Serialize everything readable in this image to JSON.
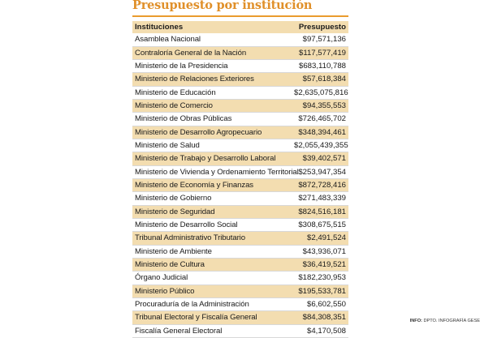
{
  "title": "Presupuesto por institución",
  "table": {
    "headers": [
      "Instituciones",
      "Presupuesto"
    ],
    "rows": [
      [
        "Asamblea Nacional",
        "$97,571,136"
      ],
      [
        "Contraloría General de la Nación",
        "$117,577,419"
      ],
      [
        "Ministerio de la Presidencia",
        "$683,110,788"
      ],
      [
        "Ministerio de Relaciones Exteriores",
        "$57,618,384"
      ],
      [
        "Ministerio de Educación",
        "$2,635,075,816"
      ],
      [
        "Ministerio de Comercio",
        "$94,355,553"
      ],
      [
        " Ministerio de Obras Públicas",
        "$726,465,702"
      ],
      [
        "Ministerio de Desarrollo Agropecuario",
        "$348,394,461"
      ],
      [
        "Ministerio de Salud",
        "$2,055,439,355"
      ],
      [
        "Ministerio de Trabajo y Desarrollo Laboral",
        "$39,402,571"
      ],
      [
        "Ministerio de Vivienda y Ordenamiento Territorial",
        "$253,947,354"
      ],
      [
        "Ministerio de Economía y Finanzas",
        "$872,728,416"
      ],
      [
        "Ministerio de Gobierno",
        "$271,483,339"
      ],
      [
        "Ministerio de Seguridad",
        "$824,516,181"
      ],
      [
        "Ministerio de Desarrollo Social",
        "$308,675,515"
      ],
      [
        "Tribunal Administrativo Tributario",
        "$2,491,524"
      ],
      [
        "Ministerio de Ambiente",
        "$43,936,071"
      ],
      [
        "Ministerio de Cultura",
        "$36,419,521"
      ],
      [
        "Órgano Judicial",
        "$182,230,953"
      ],
      [
        "Ministerio Público",
        "$195,533,781"
      ],
      [
        "Procuraduría de la Administración",
        "$6,602,550"
      ],
      [
        "Tribunal Electoral y Fiscalía General",
        "$84,308,351"
      ],
      [
        "Fiscalía General Electoral",
        "$4,170,508"
      ]
    ]
  },
  "source": {
    "label": "INFO:",
    "text": " DPTO. INFOGRAFÍA GESE"
  },
  "colors": {
    "title": "#e0902a",
    "accent": "#ea9b2e",
    "band": "#f3ddb0"
  }
}
